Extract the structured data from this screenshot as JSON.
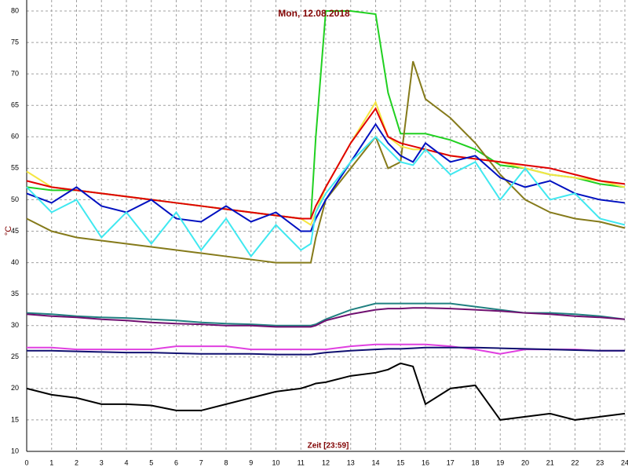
{
  "chart_data": {
    "type": "line",
    "title": "Mon, 12.08.2018",
    "x_label": "Zeit [23:59]",
    "y_label": "°C",
    "x": [
      0,
      1,
      2,
      3,
      4,
      5,
      6,
      7,
      8,
      9,
      10,
      11,
      11.4,
      11.6,
      12,
      13,
      14,
      14.5,
      15,
      15.5,
      16,
      17,
      18,
      19,
      20,
      21,
      22,
      23,
      24
    ],
    "xlim": [
      0,
      24
    ],
    "xticks": [
      0,
      1,
      2,
      3,
      4,
      5,
      6,
      7,
      8,
      9,
      10,
      11,
      12,
      13,
      14,
      15,
      16,
      17,
      18,
      19,
      20,
      21,
      22,
      23,
      24
    ],
    "ylim": [
      10,
      80
    ],
    "yticks": [
      10,
      15,
      20,
      25,
      30,
      35,
      40,
      45,
      50,
      55,
      60,
      65,
      70,
      75,
      80
    ],
    "grid": true,
    "series": [
      {
        "color": "#20d020",
        "values": [
          52,
          51.5,
          51.5,
          51,
          50.5,
          50,
          49.5,
          49,
          48.5,
          48,
          47.5,
          47,
          47,
          60,
          80,
          80,
          79.5,
          67,
          60.5,
          60.5,
          60.5,
          59.5,
          58,
          55.5,
          55,
          54,
          53.5,
          52.5,
          52
        ]
      },
      {
        "color": "#857a1a",
        "values": [
          47,
          45,
          44,
          43.5,
          43,
          42.5,
          42,
          41.5,
          41,
          40.5,
          40,
          40,
          40,
          44,
          50,
          55,
          60,
          55,
          56,
          72,
          66,
          63,
          59,
          54,
          50,
          48,
          47,
          46.5,
          45.5
        ]
      },
      {
        "color": "#f5e642",
        "values": [
          54.5,
          52,
          51.5,
          51,
          50.5,
          50,
          49.5,
          49,
          48.5,
          48,
          47.5,
          47,
          46,
          48,
          52,
          59,
          65.5,
          60,
          58.5,
          58,
          58,
          57,
          56.5,
          56,
          55,
          54,
          53.5,
          53,
          52
        ]
      },
      {
        "color": "#e00000",
        "values": [
          53,
          52,
          51.5,
          51,
          50.5,
          50,
          49.5,
          49,
          48.5,
          48,
          47.5,
          47,
          47,
          49,
          52,
          59,
          64.5,
          60,
          59,
          58.5,
          58,
          57,
          56.5,
          56,
          55.5,
          55,
          54,
          53,
          52.5
        ]
      },
      {
        "color": "#0010c0",
        "values": [
          51,
          49.5,
          52,
          49,
          48,
          50,
          47,
          46.5,
          49,
          46.5,
          48,
          45,
          45,
          47,
          50,
          56,
          62,
          59,
          57,
          56,
          59,
          56,
          57,
          53.5,
          52,
          53,
          51,
          50,
          49.5
        ]
      },
      {
        "color": "#40e8f0",
        "values": [
          52,
          48,
          50,
          44,
          48,
          43,
          48,
          42,
          47,
          41,
          46,
          42,
          43,
          48,
          51,
          56,
          60,
          58,
          56,
          55.5,
          58,
          54,
          56,
          50,
          55,
          50,
          51,
          47,
          46
        ]
      },
      {
        "color": "#208080",
        "values": [
          32,
          31.8,
          31.5,
          31.3,
          31.2,
          31,
          30.8,
          30.5,
          30.3,
          30.2,
          30,
          30,
          30,
          30.2,
          31,
          32.5,
          33.5,
          33.5,
          33.5,
          33.5,
          33.5,
          33.5,
          33,
          32.5,
          32,
          32,
          31.8,
          31.5,
          31
        ]
      },
      {
        "color": "#701070",
        "values": [
          31.8,
          31.5,
          31.3,
          31,
          30.8,
          30.5,
          30.3,
          30.2,
          30,
          30,
          29.8,
          29.8,
          29.8,
          30,
          30.8,
          31.8,
          32.5,
          32.7,
          32.7,
          32.8,
          32.8,
          32.7,
          32.5,
          32.3,
          32,
          31.8,
          31.5,
          31.3,
          31
        ]
      },
      {
        "color": "#e040e0",
        "values": [
          26.5,
          26.5,
          26.2,
          26.2,
          26.2,
          26.2,
          26.7,
          26.7,
          26.7,
          26.2,
          26.2,
          26.2,
          26.2,
          26.2,
          26.2,
          26.7,
          27,
          27,
          27,
          27,
          27,
          26.7,
          26.2,
          25.5,
          26.2,
          26.2,
          26.2,
          26,
          26
        ]
      },
      {
        "color": "#101070",
        "values": [
          26,
          26,
          25.9,
          25.8,
          25.7,
          25.7,
          25.6,
          25.5,
          25.5,
          25.5,
          25.4,
          25.4,
          25.4,
          25.5,
          25.7,
          26,
          26.2,
          26.3,
          26.3,
          26.4,
          26.5,
          26.5,
          26.5,
          26.4,
          26.3,
          26.2,
          26.1,
          26,
          26
        ]
      },
      {
        "color": "#000000",
        "values": [
          20,
          19,
          18.5,
          17.5,
          17.5,
          17.3,
          16.5,
          16.5,
          17.5,
          18.5,
          19.5,
          20,
          20.5,
          20.8,
          21,
          22,
          22.5,
          23,
          24,
          23.5,
          17.5,
          20,
          20.5,
          15,
          15.5,
          16,
          15,
          15.5,
          16
        ]
      }
    ]
  }
}
